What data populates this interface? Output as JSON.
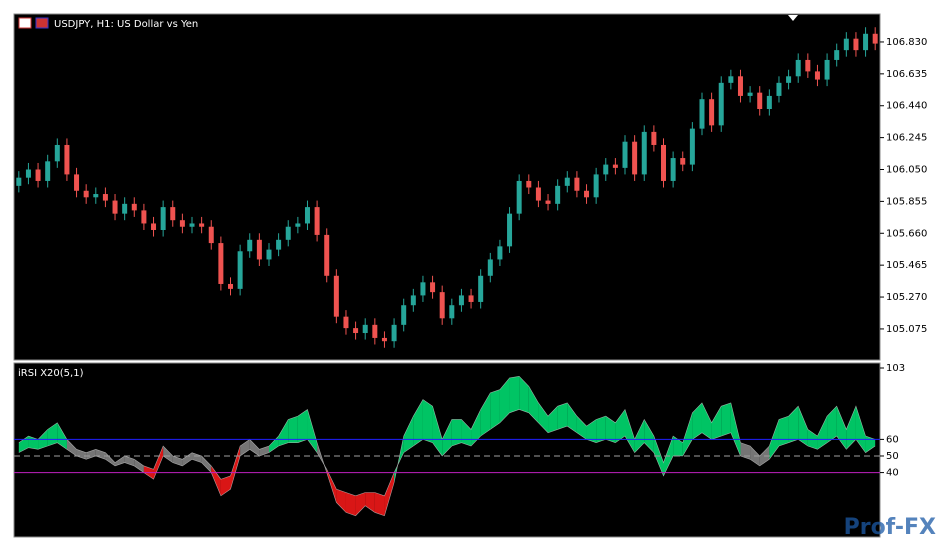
{
  "chart_data": [
    {
      "type": "candlestick",
      "title": "USDJPY, H1:  US Dollar vs Yen",
      "up_color": "#26a69a",
      "down_color": "#ef5350",
      "ylim": [
        104.885,
        107.001
      ],
      "yticks": [
        {
          "value": 106.83,
          "label": "106.830"
        },
        {
          "value": 106.635,
          "label": "106.635"
        },
        {
          "value": 106.44,
          "label": "106.440"
        },
        {
          "value": 106.245,
          "label": "106.245"
        },
        {
          "value": 106.05,
          "label": "106.050"
        },
        {
          "value": 105.855,
          "label": "105.855"
        },
        {
          "value": 105.66,
          "label": "105.660"
        },
        {
          "value": 105.465,
          "label": "105.465"
        },
        {
          "value": 105.27,
          "label": "105.270"
        },
        {
          "value": 105.075,
          "label": "105.075"
        }
      ],
      "open": [
        105.95,
        106.0,
        106.05,
        105.98,
        106.1,
        106.2,
        106.02,
        105.92,
        105.88,
        105.9,
        105.86,
        105.78,
        105.84,
        105.8,
        105.72,
        105.68,
        105.82,
        105.74,
        105.7,
        105.72,
        105.7,
        105.6,
        105.35,
        105.32,
        105.55,
        105.62,
        105.5,
        105.56,
        105.62,
        105.7,
        105.72,
        105.82,
        105.65,
        105.4,
        105.15,
        105.08,
        105.05,
        105.1,
        105.02,
        105.0,
        105.1,
        105.22,
        105.28,
        105.36,
        105.3,
        105.14,
        105.22,
        105.28,
        105.24,
        105.4,
        105.5,
        105.58,
        105.78,
        105.98,
        105.94,
        105.86,
        105.84,
        105.95,
        106.0,
        105.92,
        105.88,
        106.02,
        106.08,
        106.06,
        106.22,
        106.02,
        106.28,
        106.2,
        105.98,
        106.12,
        106.08,
        106.3,
        106.48,
        106.32,
        106.58,
        106.62,
        106.5,
        106.52,
        106.42,
        106.5,
        106.58,
        106.62,
        106.72,
        106.65,
        106.6,
        106.72,
        106.78,
        106.85,
        106.78,
        106.88
      ],
      "high": [
        106.04,
        106.09,
        106.09,
        106.14,
        106.24,
        106.24,
        106.06,
        105.96,
        105.94,
        105.94,
        105.9,
        105.88,
        105.88,
        105.84,
        105.76,
        105.86,
        105.86,
        105.78,
        105.76,
        105.76,
        105.74,
        105.64,
        105.39,
        105.59,
        105.66,
        105.66,
        105.6,
        105.66,
        105.74,
        105.76,
        105.86,
        105.86,
        105.69,
        105.44,
        105.19,
        105.12,
        105.14,
        105.14,
        105.06,
        105.14,
        105.26,
        105.32,
        105.4,
        105.4,
        105.34,
        105.26,
        105.32,
        105.32,
        105.44,
        105.54,
        105.62,
        105.82,
        106.02,
        106.02,
        105.98,
        105.9,
        105.99,
        106.04,
        106.04,
        105.96,
        106.06,
        106.12,
        106.12,
        106.26,
        106.26,
        106.32,
        106.32,
        106.24,
        106.16,
        106.16,
        106.34,
        106.52,
        106.52,
        106.62,
        106.66,
        106.66,
        106.56,
        106.56,
        106.54,
        106.62,
        106.66,
        106.76,
        106.76,
        106.69,
        106.76,
        106.82,
        106.89,
        106.89,
        106.92,
        106.92
      ],
      "low": [
        105.91,
        105.96,
        105.94,
        105.94,
        106.06,
        105.98,
        105.88,
        105.84,
        105.84,
        105.82,
        105.74,
        105.74,
        105.76,
        105.68,
        105.64,
        105.64,
        105.7,
        105.66,
        105.66,
        105.66,
        105.56,
        105.31,
        105.28,
        105.28,
        105.51,
        105.46,
        105.46,
        105.52,
        105.58,
        105.66,
        105.68,
        105.61,
        105.36,
        105.11,
        105.04,
        105.01,
        105.01,
        104.98,
        104.96,
        104.96,
        105.06,
        105.18,
        105.24,
        105.26,
        105.1,
        105.1,
        105.18,
        105.2,
        105.2,
        105.36,
        105.46,
        105.54,
        105.74,
        105.9,
        105.82,
        105.8,
        105.8,
        105.91,
        105.88,
        105.84,
        105.84,
        105.98,
        106.02,
        106.02,
        105.98,
        105.98,
        106.16,
        105.94,
        105.94,
        106.04,
        106.04,
        106.26,
        106.28,
        106.28,
        106.54,
        106.46,
        106.46,
        106.38,
        106.38,
        106.46,
        106.54,
        106.58,
        106.61,
        106.56,
        106.56,
        106.68,
        106.74,
        106.74,
        106.74,
        106.78
      ],
      "close": [
        106.0,
        106.05,
        105.98,
        106.1,
        106.2,
        106.02,
        105.92,
        105.88,
        105.9,
        105.86,
        105.78,
        105.84,
        105.8,
        105.72,
        105.68,
        105.82,
        105.74,
        105.7,
        105.72,
        105.7,
        105.6,
        105.35,
        105.32,
        105.55,
        105.62,
        105.5,
        105.56,
        105.62,
        105.7,
        105.72,
        105.82,
        105.65,
        105.4,
        105.15,
        105.08,
        105.05,
        105.1,
        105.02,
        105.0,
        105.1,
        105.22,
        105.28,
        105.36,
        105.3,
        105.14,
        105.22,
        105.28,
        105.24,
        105.4,
        105.5,
        105.58,
        105.78,
        105.98,
        105.94,
        105.86,
        105.84,
        105.95,
        106.0,
        105.92,
        105.88,
        106.02,
        106.08,
        106.06,
        106.22,
        106.02,
        106.28,
        106.2,
        105.98,
        106.12,
        106.08,
        106.3,
        106.48,
        106.32,
        106.58,
        106.62,
        106.5,
        106.52,
        106.42,
        106.5,
        106.58,
        106.62,
        106.72,
        106.65,
        106.6,
        106.72,
        106.78,
        106.85,
        106.78,
        106.88,
        106.82
      ]
    },
    {
      "type": "band",
      "title": "iRSI X20(5,1)",
      "ylim": [
        2.4,
        103
      ],
      "yticks": [
        103,
        60,
        50,
        40
      ],
      "levels": [
        {
          "value": 60,
          "color": "#2020ff",
          "dashed": false
        },
        {
          "value": 50,
          "color": "#a0a0a0",
          "dashed": true
        },
        {
          "value": 40,
          "color": "#c020c0",
          "dashed": false
        }
      ],
      "zone_colors": {
        "above": "#00e676",
        "below": "#ff1a1a",
        "neutral": "#8a8a8a"
      },
      "series": [
        {
          "color": "#d0d0d0",
          "values": [
            58,
            62,
            60,
            66,
            70,
            60,
            54,
            52,
            54,
            52,
            46,
            50,
            48,
            44,
            42,
            56,
            50,
            48,
            52,
            50,
            44,
            36,
            38,
            56,
            60,
            54,
            56,
            62,
            72,
            74,
            78,
            58,
            40,
            22,
            16,
            14,
            20,
            16,
            14,
            34,
            62,
            74,
            84,
            80,
            60,
            72,
            72,
            66,
            78,
            88,
            90,
            97,
            98,
            92,
            82,
            74,
            80,
            82,
            74,
            68,
            72,
            74,
            70,
            78,
            60,
            72,
            62,
            46,
            62,
            58,
            76,
            82,
            70,
            80,
            82,
            58,
            56,
            50,
            56,
            72,
            74,
            80,
            66,
            62,
            74,
            80,
            66,
            80,
            62,
            60
          ]
        },
        {
          "color": "#d0d0d0",
          "values": [
            52,
            55,
            54,
            56,
            58,
            54,
            50,
            48,
            50,
            48,
            44,
            46,
            44,
            40,
            36,
            50,
            46,
            44,
            48,
            46,
            40,
            26,
            30,
            50,
            54,
            50,
            52,
            56,
            58,
            58,
            60,
            52,
            42,
            30,
            28,
            26,
            28,
            28,
            26,
            40,
            52,
            56,
            60,
            58,
            50,
            56,
            58,
            56,
            62,
            66,
            70,
            76,
            78,
            76,
            70,
            64,
            66,
            68,
            64,
            60,
            58,
            60,
            58,
            62,
            52,
            58,
            52,
            38,
            50,
            50,
            60,
            64,
            60,
            62,
            64,
            50,
            48,
            44,
            48,
            56,
            58,
            60,
            56,
            54,
            58,
            62,
            54,
            60,
            52,
            56
          ]
        }
      ]
    }
  ],
  "watermark": "Prof-FX"
}
